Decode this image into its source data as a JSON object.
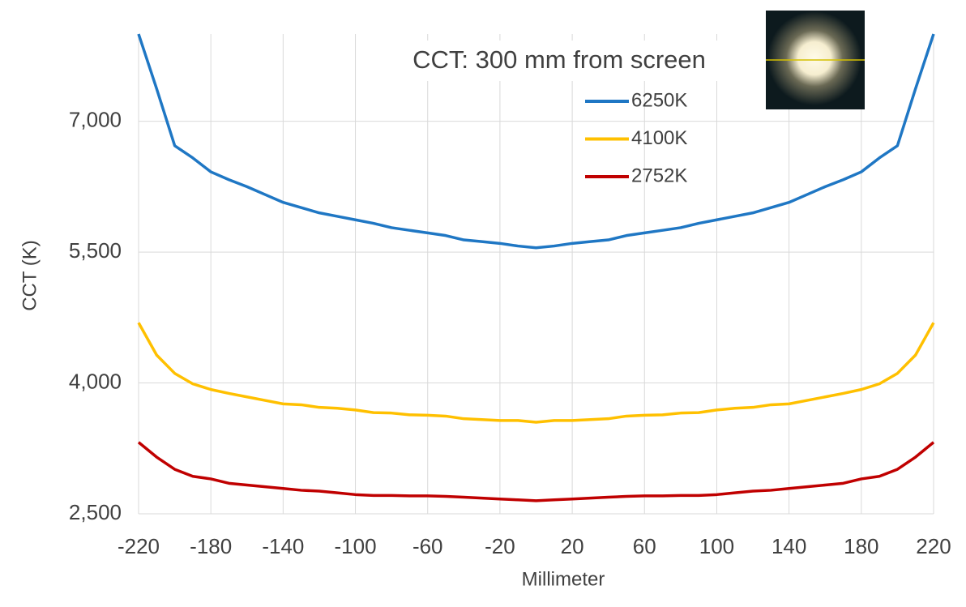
{
  "chart_data": {
    "type": "line",
    "title": "CCT: 300 mm from screen",
    "x_label": "Millimeter",
    "y_label": "CCT (K)",
    "x": [
      -220,
      -210,
      -200,
      -190,
      -180,
      -170,
      -160,
      -150,
      -140,
      -130,
      -120,
      -110,
      -100,
      -90,
      -80,
      -70,
      -60,
      -50,
      -40,
      -30,
      -20,
      -10,
      0,
      10,
      20,
      30,
      40,
      50,
      60,
      70,
      80,
      90,
      100,
      110,
      120,
      130,
      140,
      150,
      160,
      170,
      180,
      190,
      200,
      210,
      220
    ],
    "series": [
      {
        "name": "6250K",
        "color": "#1f77c4",
        "values": [
          8000,
          7373,
          6720,
          6580,
          6420,
          6330,
          6250,
          6160,
          6070,
          6010,
          5950,
          5910,
          5870,
          5830,
          5780,
          5750,
          5720,
          5690,
          5640,
          5620,
          5600,
          5570,
          5550,
          5570,
          5600,
          5620,
          5640,
          5690,
          5720,
          5750,
          5780,
          5830,
          5870,
          5910,
          5950,
          6010,
          6070,
          6160,
          6250,
          6330,
          6420,
          6580,
          6720,
          7373,
          8000
        ]
      },
      {
        "name": "4100K",
        "color": "#ffc000",
        "values": [
          4690,
          4320,
          4110,
          3990,
          3925,
          3880,
          3840,
          3800,
          3760,
          3750,
          3720,
          3710,
          3690,
          3660,
          3655,
          3635,
          3630,
          3620,
          3590,
          3580,
          3570,
          3570,
          3550,
          3570,
          3570,
          3580,
          3590,
          3620,
          3630,
          3635,
          3655,
          3660,
          3690,
          3710,
          3720,
          3750,
          3760,
          3800,
          3840,
          3880,
          3925,
          3990,
          4110,
          4320,
          4690
        ]
      },
      {
        "name": "2752K",
        "color": "#c00000",
        "values": [
          3320,
          3150,
          3010,
          2930,
          2900,
          2850,
          2830,
          2810,
          2790,
          2770,
          2760,
          2740,
          2720,
          2710,
          2710,
          2705,
          2705,
          2700,
          2690,
          2680,
          2670,
          2660,
          2650,
          2660,
          2670,
          2680,
          2690,
          2700,
          2705,
          2705,
          2710,
          2710,
          2720,
          2740,
          2760,
          2770,
          2790,
          2810,
          2830,
          2850,
          2900,
          2930,
          3010,
          3150,
          3320
        ]
      }
    ],
    "xlim": [
      -220,
      220
    ],
    "xticks": [
      -220,
      -180,
      -140,
      -100,
      -60,
      -20,
      20,
      60,
      100,
      140,
      180,
      220
    ],
    "ylim": [
      2500,
      8000
    ],
    "yticks": [
      {
        "value": 2500,
        "label": "2,500"
      },
      {
        "value": 4000,
        "label": "4,000"
      },
      {
        "value": 5500,
        "label": "5,500"
      },
      {
        "value": 7000,
        "label": "7,000"
      }
    ],
    "grid": true
  }
}
